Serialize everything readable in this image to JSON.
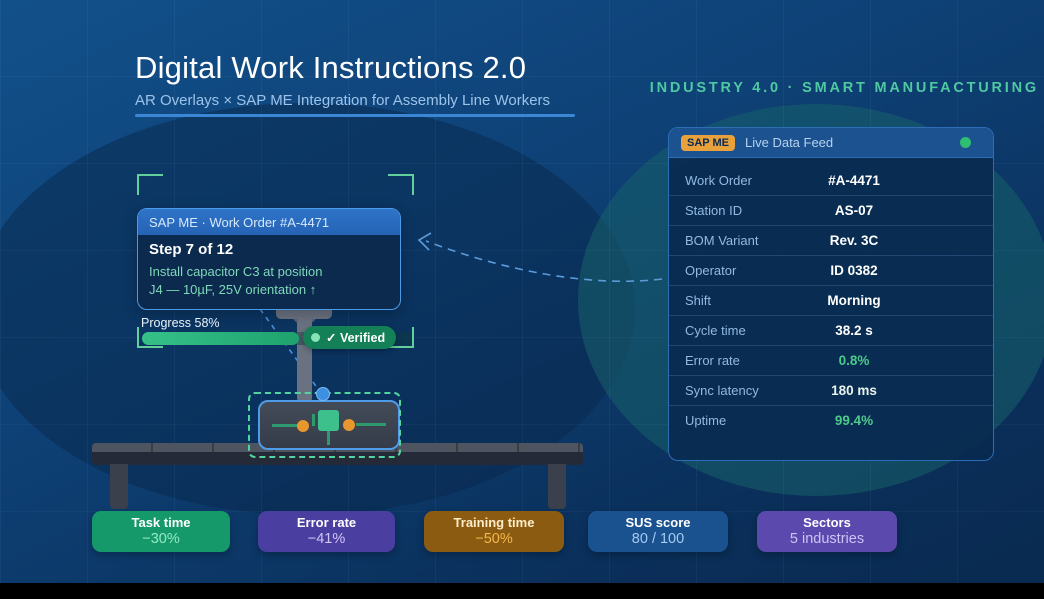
{
  "header": {
    "title": "Digital Work Instructions 2.0",
    "subtitle": "AR Overlays × SAP ME Integration for Assembly Line Workers",
    "tagline": "INDUSTRY 4.0 · SMART MANUFACTURING"
  },
  "data_feed_panel": {
    "badge": "SAP ME",
    "title": "Live Data Feed",
    "status_color": "#2fbf71",
    "rows": [
      {
        "label": "Work Order",
        "value": "#A-4471",
        "color": "#ffffff"
      },
      {
        "label": "Station ID",
        "value": "AS-07",
        "color": "#ffffff"
      },
      {
        "label": "BOM Variant",
        "value": "Rev. 3C",
        "color": "#ffffff"
      },
      {
        "label": "Operator",
        "value": "ID 0382",
        "color": "#ffffff"
      },
      {
        "label": "Shift",
        "value": "Morning",
        "color": "#ffffff"
      },
      {
        "label": "Cycle time",
        "value": "38.2 s",
        "color": "#ffffff"
      },
      {
        "label": "Error rate",
        "value": "0.8%",
        "color": "#4cc98b"
      },
      {
        "label": "Sync latency",
        "value": "180 ms",
        "color": "#e9f4ec"
      },
      {
        "label": "Uptime",
        "value": "99.4%",
        "color": "#4cc98b"
      }
    ]
  },
  "ar_card": {
    "header": "SAP ME · Work Order #A-4471",
    "step": "Step 7 of 12",
    "instruction_line1": "Install capacitor C3 at position",
    "instruction_line2": "J4 — 10µF, 25V orientation ↑"
  },
  "progress": {
    "label": "Progress 58%",
    "percent": 58
  },
  "verified_badge": {
    "label": "✓ Verified"
  },
  "stat_cards": [
    {
      "label": "Task time",
      "value": "−30%",
      "bg": "#15996b",
      "label_color": "#ffffff",
      "value_color": "#96e9c5"
    },
    {
      "label": "Error rate",
      "value": "−41%",
      "bg": "#4b3ea1",
      "label_color": "#ffffff",
      "value_color": "#d0c6f4"
    },
    {
      "label": "Training time",
      "value": "−50%",
      "bg": "#8a5b10",
      "label_color": "#ffedc9",
      "value_color": "#f3b84a"
    },
    {
      "label": "SUS score",
      "value": "80 / 100",
      "bg": "#1a518f",
      "label_color": "#ffffff",
      "value_color": "#a5cbf1"
    },
    {
      "label": "Sectors",
      "value": "5 industries",
      "bg": "#5b49ad",
      "label_color": "#ffffff",
      "value_color": "#cfc2f4"
    }
  ],
  "layout_hint": {
    "stat_card_lefts": [
      92,
      258,
      424,
      588,
      757
    ],
    "stat_card_widths": [
      138,
      137,
      140,
      140,
      140
    ]
  }
}
